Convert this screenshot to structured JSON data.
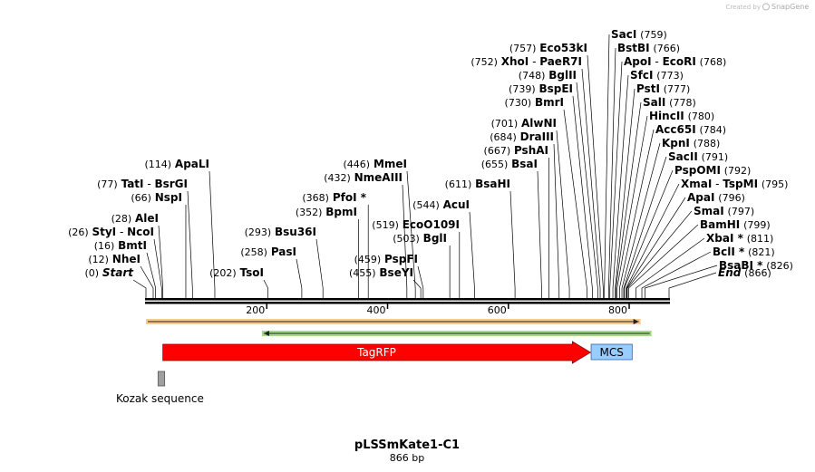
{
  "watermark": {
    "text": "Created by",
    "brand": "SnapGene"
  },
  "title": "pLSSmKate1-C1",
  "subtitle": "866 bp",
  "ruler": {
    "length_bp": 866,
    "ticks": [
      {
        "bp": 200,
        "label": "200"
      },
      {
        "bp": 400,
        "label": "400"
      },
      {
        "bp": 600,
        "label": "600"
      },
      {
        "bp": 800,
        "label": "800"
      }
    ]
  },
  "sites": [
    {
      "pos": "(0)",
      "bp": 0,
      "names": [
        {
          "text": "Start",
          "italic": true
        }
      ]
    },
    {
      "pos": "(12)",
      "bp": 12,
      "names": [
        {
          "text": "NheI"
        }
      ]
    },
    {
      "pos": "(16)",
      "bp": 16,
      "names": [
        {
          "text": "BmtI"
        }
      ]
    },
    {
      "pos": "(26)",
      "bp": 26,
      "names": [
        {
          "text": "StyI"
        },
        {
          "text": "NcoI"
        }
      ]
    },
    {
      "pos": "(28)",
      "bp": 28,
      "names": [
        {
          "text": "AleI"
        }
      ]
    },
    {
      "pos": "(66)",
      "bp": 66,
      "names": [
        {
          "text": "NspI"
        }
      ]
    },
    {
      "pos": "(77)",
      "bp": 77,
      "names": [
        {
          "text": "TatI"
        },
        {
          "text": "BsrGI"
        }
      ]
    },
    {
      "pos": "(114)",
      "bp": 114,
      "names": [
        {
          "text": "ApaLI"
        }
      ]
    },
    {
      "pos": "(202)",
      "bp": 202,
      "names": [
        {
          "text": "TsoI"
        }
      ]
    },
    {
      "pos": "(258)",
      "bp": 258,
      "names": [
        {
          "text": "PasI"
        }
      ]
    },
    {
      "pos": "(293)",
      "bp": 293,
      "names": [
        {
          "text": "Bsu36I"
        }
      ]
    },
    {
      "pos": "(352)",
      "bp": 352,
      "names": [
        {
          "text": "BpmI"
        }
      ]
    },
    {
      "pos": "(368)",
      "bp": 368,
      "names": [
        {
          "text": "PfoI *"
        }
      ]
    },
    {
      "pos": "(432)",
      "bp": 432,
      "names": [
        {
          "text": "NmeAIII"
        }
      ]
    },
    {
      "pos": "(446)",
      "bp": 446,
      "names": [
        {
          "text": "MmeI"
        }
      ]
    },
    {
      "pos": "(455)",
      "bp": 455,
      "names": [
        {
          "text": "BseYI"
        }
      ]
    },
    {
      "pos": "(459)",
      "bp": 459,
      "names": [
        {
          "text": "PspFI"
        }
      ]
    },
    {
      "pos": "(503)",
      "bp": 503,
      "names": [
        {
          "text": "BglI"
        }
      ]
    },
    {
      "pos": "(519)",
      "bp": 519,
      "names": [
        {
          "text": "EcoO109I"
        }
      ]
    },
    {
      "pos": "(544)",
      "bp": 544,
      "names": [
        {
          "text": "AcuI"
        }
      ]
    },
    {
      "pos": "(611)",
      "bp": 611,
      "names": [
        {
          "text": "BsaHI"
        }
      ]
    },
    {
      "pos": "(655)",
      "bp": 655,
      "names": [
        {
          "text": "BsaI"
        }
      ]
    },
    {
      "pos": "(667)",
      "bp": 667,
      "names": [
        {
          "text": "PshAI"
        }
      ]
    },
    {
      "pos": "(684)",
      "bp": 684,
      "names": [
        {
          "text": "DraIII"
        }
      ]
    },
    {
      "pos": "(701)",
      "bp": 701,
      "names": [
        {
          "text": "AlwNI"
        }
      ]
    },
    {
      "pos": "(730)",
      "bp": 730,
      "names": [
        {
          "text": "BmrI"
        }
      ]
    },
    {
      "pos": "(739)",
      "bp": 739,
      "names": [
        {
          "text": "BspEI"
        }
      ]
    },
    {
      "pos": "(748)",
      "bp": 748,
      "names": [
        {
          "text": "BglII"
        }
      ]
    },
    {
      "pos": "(752)",
      "bp": 752,
      "names": [
        {
          "text": "XhoI"
        },
        {
          "text": "PaeR7I"
        }
      ]
    },
    {
      "pos": "(757)",
      "bp": 757,
      "names": [
        {
          "text": "Eco53kI"
        }
      ]
    },
    {
      "pos": "(759)",
      "bp": 759,
      "names": [
        {
          "text": "SacI"
        }
      ]
    },
    {
      "pos": "(766)",
      "bp": 766,
      "names": [
        {
          "text": "BstBI"
        }
      ]
    },
    {
      "pos": "(768)",
      "bp": 768,
      "names": [
        {
          "text": "ApoI"
        },
        {
          "text": "EcoRI"
        }
      ]
    },
    {
      "pos": "(773)",
      "bp": 773,
      "names": [
        {
          "text": "SfcI"
        }
      ]
    },
    {
      "pos": "(777)",
      "bp": 777,
      "names": [
        {
          "text": "PstI"
        }
      ]
    },
    {
      "pos": "(778)",
      "bp": 778,
      "names": [
        {
          "text": "SalI"
        }
      ]
    },
    {
      "pos": "(780)",
      "bp": 780,
      "names": [
        {
          "text": "HincII"
        }
      ]
    },
    {
      "pos": "(784)",
      "bp": 784,
      "names": [
        {
          "text": "Acc65I"
        }
      ]
    },
    {
      "pos": "(788)",
      "bp": 788,
      "names": [
        {
          "text": "KpnI"
        }
      ]
    },
    {
      "pos": "(791)",
      "bp": 791,
      "names": [
        {
          "text": "SacII"
        }
      ]
    },
    {
      "pos": "(792)",
      "bp": 792,
      "names": [
        {
          "text": "PspOMI"
        }
      ]
    },
    {
      "pos": "(795)",
      "bp": 795,
      "names": [
        {
          "text": "XmaI"
        },
        {
          "text": "TspMI"
        }
      ]
    },
    {
      "pos": "(796)",
      "bp": 796,
      "names": [
        {
          "text": "ApaI"
        }
      ]
    },
    {
      "pos": "(797)",
      "bp": 797,
      "names": [
        {
          "text": "SmaI"
        }
      ]
    },
    {
      "pos": "(799)",
      "bp": 799,
      "names": [
        {
          "text": "BamHI"
        }
      ]
    },
    {
      "pos": "(811)",
      "bp": 811,
      "names": [
        {
          "text": "XbaI *"
        }
      ]
    },
    {
      "pos": "(821)",
      "bp": 821,
      "names": [
        {
          "text": "BclI *"
        }
      ]
    },
    {
      "pos": "(826)",
      "bp": 826,
      "names": [
        {
          "text": "BsaBI *"
        }
      ]
    },
    {
      "pos": "(866)",
      "bp": 866,
      "names": [
        {
          "text": "End",
          "italic": true
        }
      ]
    }
  ],
  "features": [
    {
      "label": "TagRFP",
      "start": 28,
      "end": 736,
      "color": "#ff0000",
      "label_color": "#ffffff"
    },
    {
      "label": "MCS",
      "start": 737,
      "end": 805,
      "color": "#99ccff",
      "label_color": "#000000"
    },
    {
      "label": "Kozak sequence",
      "start": 20,
      "end": 31,
      "color": "#a0a0a0",
      "label_color": "#000000"
    }
  ],
  "orfs": [
    {
      "start": 0,
      "end": 819,
      "color": "#f0a030",
      "direction": "forward"
    },
    {
      "start": 192,
      "end": 837,
      "color": "#55bb22",
      "direction": "reverse"
    }
  ]
}
